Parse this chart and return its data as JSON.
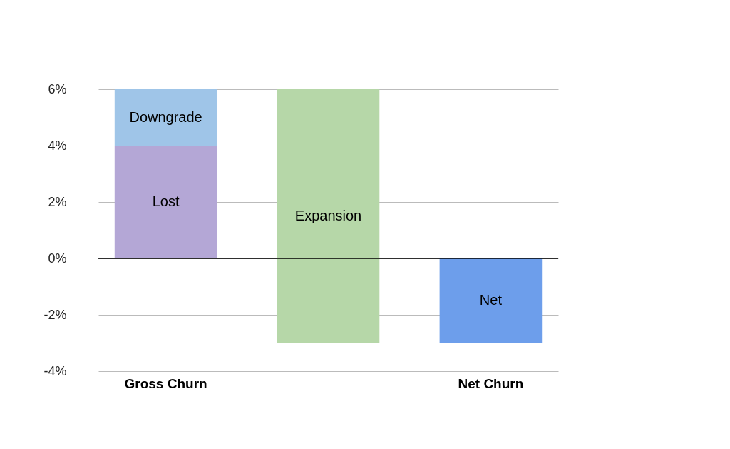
{
  "chart_data": {
    "type": "bar",
    "categories": [
      "Gross Churn",
      null,
      "Net Churn"
    ],
    "series": [
      {
        "name": "Lost",
        "color": "#b4a7d6",
        "base": [
          0,
          null,
          null
        ],
        "values": [
          4,
          null,
          null
        ]
      },
      {
        "name": "Downgrade",
        "color": "#9fc5e8",
        "base": [
          4,
          null,
          null
        ],
        "values": [
          2,
          null,
          null
        ]
      },
      {
        "name": "Expansion",
        "color": "#b6d7a8",
        "base": [
          null,
          6,
          null
        ],
        "values": [
          null,
          -9,
          null
        ]
      },
      {
        "name": "Net",
        "color": "#6d9eeb",
        "base": [
          null,
          null,
          0
        ],
        "values": [
          null,
          null,
          -3
        ]
      }
    ],
    "ylim": [
      -4,
      6
    ],
    "yticks": [
      {
        "value": -4,
        "label": "-4%"
      },
      {
        "value": -2,
        "label": "-2%"
      },
      {
        "value": 0,
        "label": "0%"
      },
      {
        "value": 2,
        "label": "2%"
      },
      {
        "value": 4,
        "label": "4%"
      },
      {
        "value": 6,
        "label": "6%"
      }
    ],
    "ref_lines": [
      {
        "axis": "y",
        "value": 0,
        "color": "#000000"
      }
    ],
    "grid": "y",
    "legend": false
  }
}
